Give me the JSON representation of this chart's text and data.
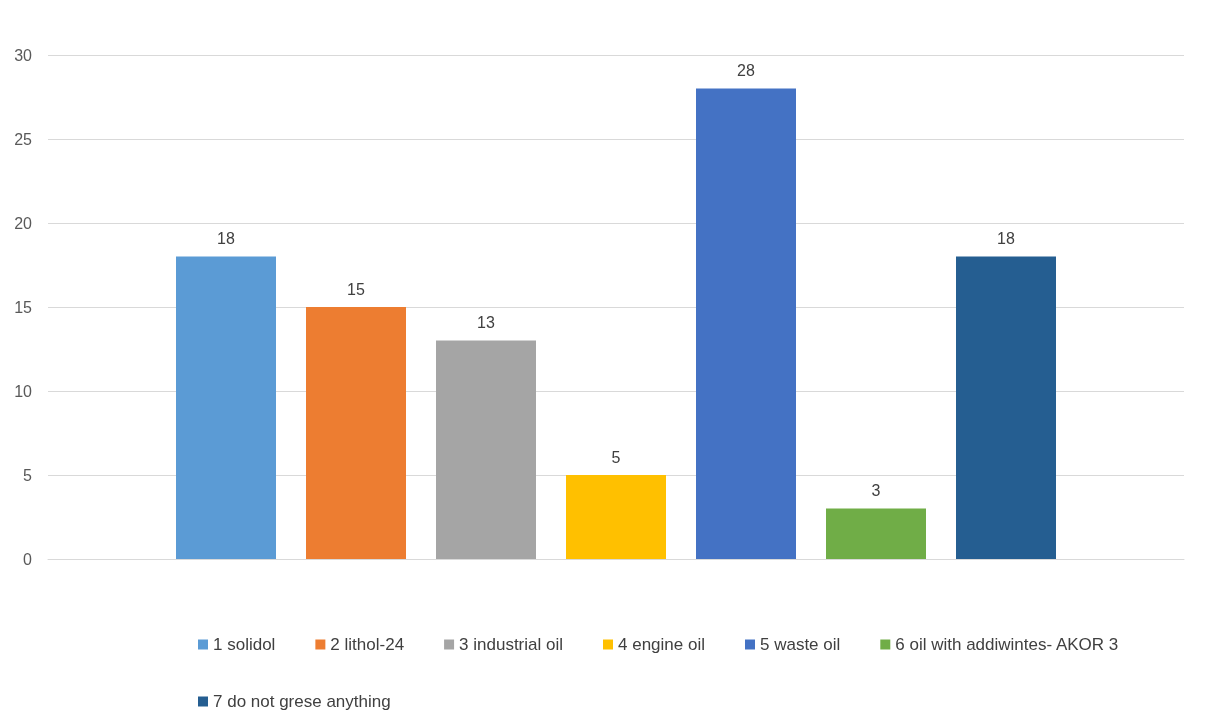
{
  "chart_data": {
    "type": "bar",
    "categories": [
      null
    ],
    "series": [
      {
        "name": "1 solidol",
        "color": "#5b9bd5",
        "values": [
          18
        ]
      },
      {
        "name": "2 lithol-24",
        "color": "#ed7d31",
        "values": [
          15
        ]
      },
      {
        "name": "3 industrial oil",
        "color": "#a5a5a5",
        "values": [
          13
        ]
      },
      {
        "name": "4 engine oil",
        "color": "#ffc000",
        "values": [
          5
        ]
      },
      {
        "name": "5 waste oil",
        "color": "#4472c4",
        "values": [
          28
        ]
      },
      {
        "name": "6 oil with addiwintes- AKOR 3",
        "color": "#70ad47",
        "values": [
          3
        ]
      },
      {
        "name": "7 do not grese anything",
        "color": "#255e91",
        "values": [
          18
        ]
      }
    ],
    "ylim": [
      0,
      30
    ],
    "yticks": [
      0,
      5,
      10,
      15,
      20,
      25,
      30
    ],
    "grid": "y",
    "data_labels": true,
    "legend": "bottom"
  }
}
